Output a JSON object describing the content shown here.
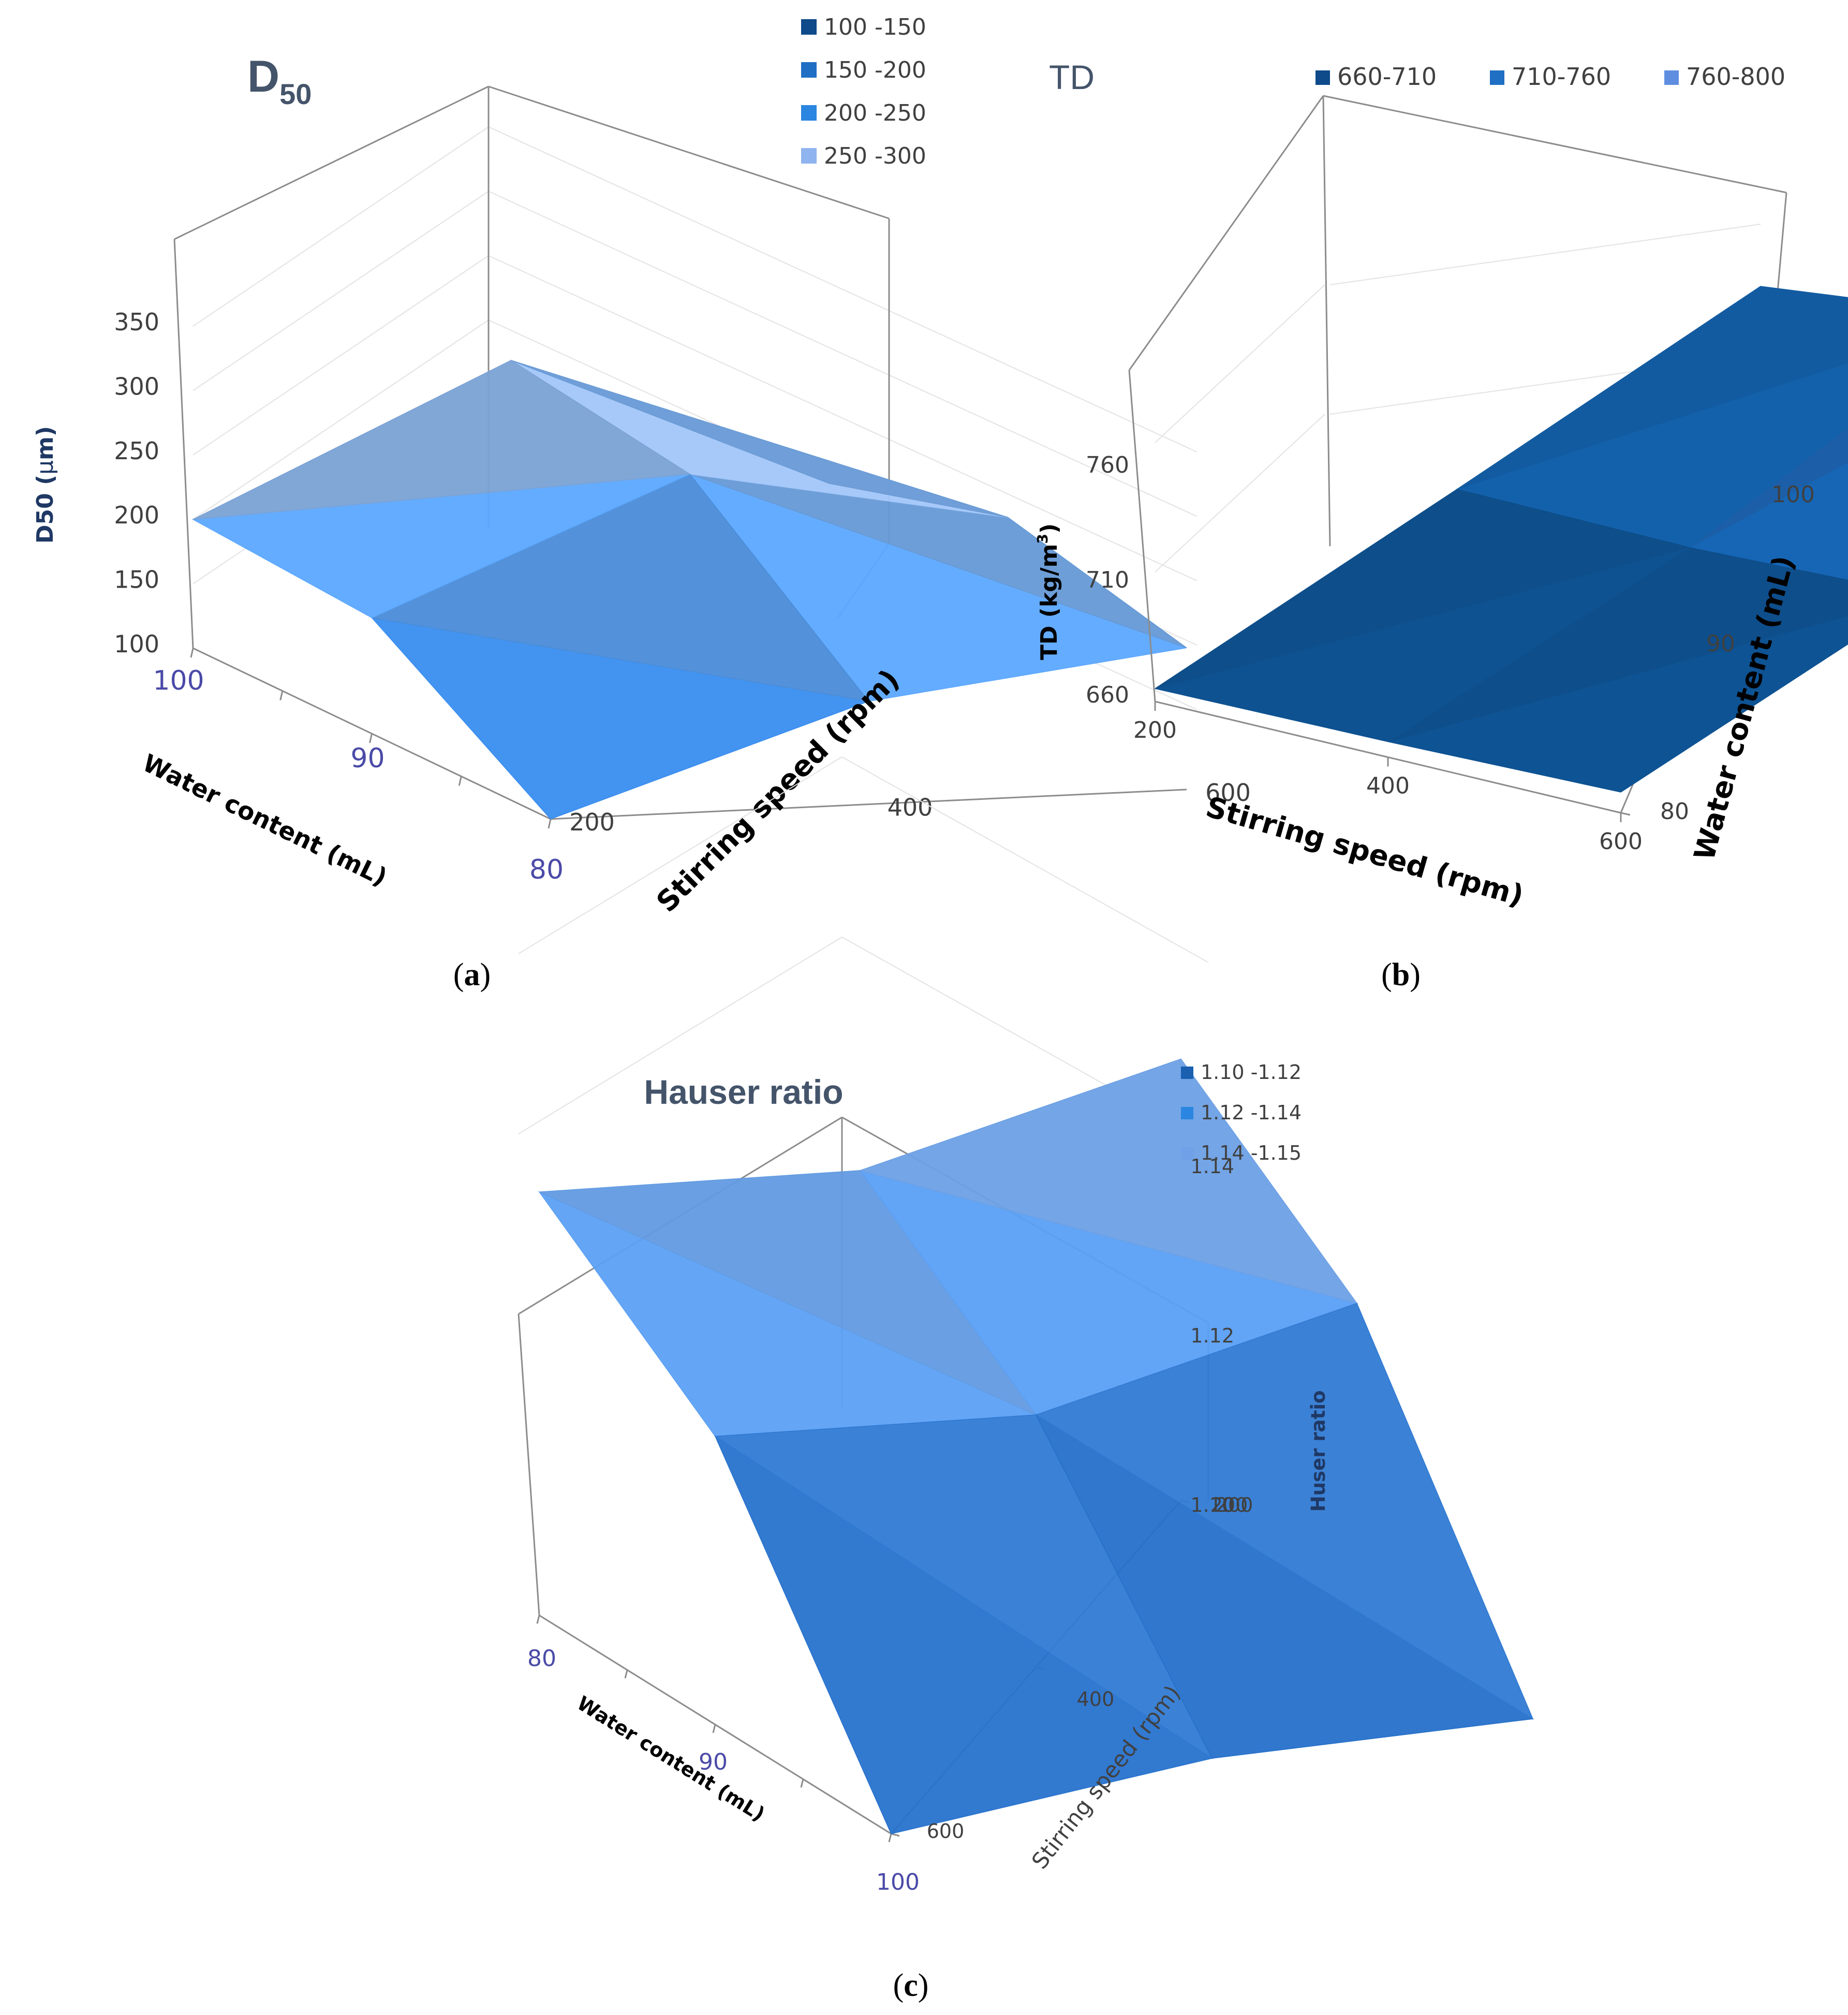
{
  "chart_data": [
    {
      "panel": "a",
      "type": "surface3d",
      "caption_letter": "a",
      "title_main": "D",
      "title_sub": "50",
      "zlabel_main": "D50 (",
      "zlabel_mu": "μ",
      "zlabel_end": "m)",
      "xlabel": "Water content (mL)",
      "ylabel": "Stirring speed (rpm)",
      "x_ticks": [
        "100",
        "90",
        "80"
      ],
      "y_ticks": [
        "200",
        "400",
        "600"
      ],
      "z_ticks": [
        "100",
        "150",
        "200",
        "250",
        "300",
        "350"
      ],
      "zlim": [
        100,
        350
      ],
      "legend": [
        "100 -150",
        "150 -200",
        "200 -250",
        "250 -300"
      ],
      "legend_colors": [
        "#0f4a8a",
        "#1f6fc4",
        "#2a86e0",
        "#8fb4ef"
      ],
      "x": [
        100,
        90,
        80
      ],
      "y": [
        200,
        400,
        600
      ],
      "z": [
        [
          200,
          312,
          205
        ],
        [
          190,
          290,
          245
        ],
        [
          100,
          180,
          210
        ]
      ]
    },
    {
      "panel": "b",
      "type": "surface3d",
      "caption_letter": "b",
      "title": "TD",
      "zlabel_main": "TD (kg/m",
      "zlabel_sup": "3",
      "zlabel_end": ")",
      "xlabel": "Stirring  speed (rpm)",
      "ylabel": "Water content (mL)",
      "x_ticks": [
        "200",
        "400",
        "600"
      ],
      "y_ticks": [
        "80",
        "90",
        "100"
      ],
      "z_ticks": [
        "660",
        "710",
        "760"
      ],
      "zlim": [
        660,
        800
      ],
      "legend": [
        "660-710",
        "710-760",
        "760-800"
      ],
      "legend_colors": [
        "#0f4a8a",
        "#1f6fc4",
        "#5f8ee0"
      ],
      "x": [
        200,
        400,
        600
      ],
      "y": [
        80,
        90,
        100
      ],
      "z": [
        [
          665,
          700,
          736
        ],
        [
          666,
          699,
          746
        ],
        [
          668,
          702,
          790
        ]
      ]
    },
    {
      "panel": "c",
      "type": "surface3d",
      "caption_letter": "c",
      "title": "Hauser ratio",
      "zlabel": "Huser ratio",
      "xlabel": "Water content (mL)",
      "ylabel": "Stirring speed (rpm)",
      "x_ticks": [
        "80",
        "90",
        "100"
      ],
      "y_ticks": [
        "600",
        "400",
        "200"
      ],
      "z_ticks": [
        "1.10",
        "1.12",
        "1.14"
      ],
      "z_overlap_label": "200",
      "zlim": [
        1.1,
        1.15
      ],
      "legend": [
        "1.10 -1.12",
        "1.12 -1.14",
        "1.14 -1.15"
      ],
      "legend_colors": [
        "#1a5fb0",
        "#2a86e0",
        "#6fa0e8"
      ],
      "x": [
        80,
        90,
        100
      ],
      "y": [
        600,
        400,
        200
      ],
      "z": [
        [
          1.147,
          1.143,
          1.149
        ],
        [
          1.132,
          1.128,
          1.134
        ],
        [
          1.1,
          1.102,
          1.1
        ]
      ]
    }
  ]
}
